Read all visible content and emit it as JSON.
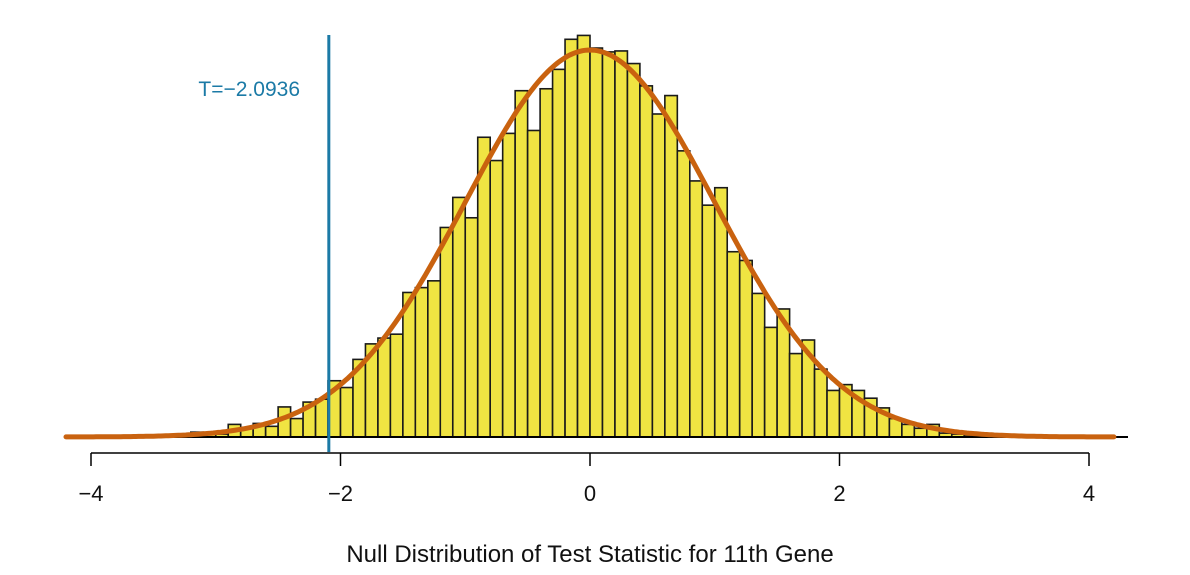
{
  "chart_data": {
    "type": "bar",
    "subtype": "histogram-with-density",
    "title": "",
    "xlabel": "Null Distribution of Test Statistic for 11th Gene",
    "ylabel": "",
    "xlim": [
      -4.2,
      4.2
    ],
    "ylim": [
      0,
      0.42
    ],
    "xticks": [
      -4,
      -2,
      0,
      2,
      4
    ],
    "xtick_labels": [
      "−4",
      "−2",
      "0",
      "2",
      "4"
    ],
    "bin_width": 0.1,
    "bin_starts": [
      -3.5,
      -3.4,
      -3.3,
      -3.2,
      -3.1,
      -3.0,
      -2.9,
      -2.8,
      -2.7,
      -2.6,
      -2.5,
      -2.4,
      -2.3,
      -2.2,
      -2.1,
      -2.0,
      -1.9,
      -1.8,
      -1.7,
      -1.6,
      -1.5,
      -1.4,
      -1.3,
      -1.2,
      -1.1,
      -1.0,
      -0.9,
      -0.8,
      -0.7,
      -0.6,
      -0.5,
      -0.4,
      -0.3,
      -0.2,
      -0.1,
      0.0,
      0.1,
      0.2,
      0.3,
      0.4,
      0.5,
      0.6,
      0.7,
      0.8,
      0.9,
      1.0,
      1.1,
      1.2,
      1.3,
      1.4,
      1.5,
      1.6,
      1.7,
      1.8,
      1.9,
      2.0,
      2.1,
      2.2,
      2.3,
      2.4,
      2.5,
      2.6,
      2.7,
      2.8,
      2.9,
      3.0,
      3.1,
      3.2,
      3.3
    ],
    "densities": [
      0.001,
      0.001,
      0.002,
      0.005,
      0.004,
      0.003,
      0.013,
      0.009,
      0.014,
      0.011,
      0.031,
      0.019,
      0.036,
      0.039,
      0.058,
      0.051,
      0.08,
      0.096,
      0.102,
      0.106,
      0.149,
      0.154,
      0.161,
      0.216,
      0.247,
      0.226,
      0.309,
      0.285,
      0.313,
      0.357,
      0.316,
      0.359,
      0.379,
      0.41,
      0.414,
      0.401,
      0.397,
      0.398,
      0.385,
      0.362,
      0.333,
      0.352,
      0.295,
      0.264,
      0.239,
      0.257,
      0.191,
      0.182,
      0.148,
      0.113,
      0.132,
      0.086,
      0.1,
      0.07,
      0.048,
      0.054,
      0.048,
      0.04,
      0.03,
      0.019,
      0.013,
      0.009,
      0.013,
      0.004,
      0.003,
      0.002,
      0.001,
      0.001,
      0.001
    ],
    "density_curve": {
      "name": "standard normal",
      "mean": 0,
      "sd": 1
    },
    "reference_line": {
      "x": -2.0936,
      "label": "T=−2.0936"
    },
    "grid": false,
    "colors": {
      "bars": "#f0e442",
      "bar_edge": "#1a1a1a",
      "curve": "#c9620f",
      "reference": "#1b7aa6"
    }
  }
}
